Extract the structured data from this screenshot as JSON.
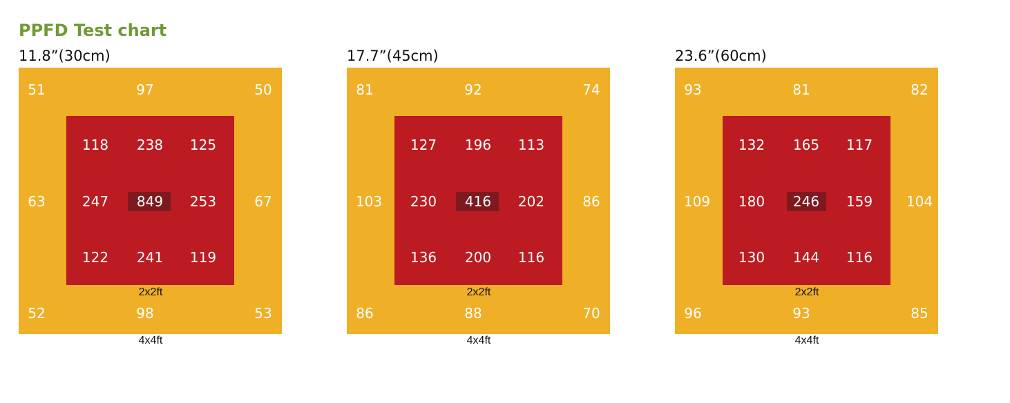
{
  "chart_data": {
    "type": "heatmap",
    "title": "PPFD Test chart",
    "inner_area_label": "2x2ft",
    "outer_area_label": "4x4ft",
    "panels": [
      {
        "height_label": "11.8”(30cm)",
        "outer": {
          "top": [
            "51",
            "97",
            "50"
          ],
          "middle": [
            "63",
            "67"
          ],
          "bottom": [
            "52",
            "98",
            "53"
          ]
        },
        "inner": [
          [
            "118",
            "238",
            "125"
          ],
          [
            "247",
            "849",
            "253"
          ],
          [
            "122",
            "241",
            "119"
          ]
        ]
      },
      {
        "height_label": "17.7”(45cm)",
        "outer": {
          "top": [
            "81",
            "92",
            "74"
          ],
          "middle": [
            "103",
            "86"
          ],
          "bottom": [
            "86",
            "88",
            "70"
          ]
        },
        "inner": [
          [
            "127",
            "196",
            "113"
          ],
          [
            "230",
            "416",
            "202"
          ],
          [
            "136",
            "200",
            "116"
          ]
        ]
      },
      {
        "height_label": "23.6”(60cm)",
        "outer": {
          "top": [
            "93",
            "81",
            "82"
          ],
          "middle": [
            "109",
            "104"
          ],
          "bottom": [
            "96",
            "93",
            "85"
          ]
        },
        "inner": [
          [
            "132",
            "165",
            "117"
          ],
          [
            "180",
            "246",
            "159"
          ],
          [
            "130",
            "144",
            "116"
          ]
        ]
      }
    ]
  }
}
